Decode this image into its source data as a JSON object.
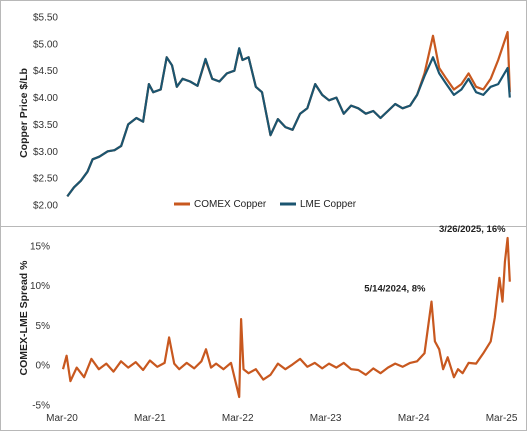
{
  "chart_data": [
    {
      "type": "line",
      "ylabel": "Copper Price $/Lb",
      "ylim": [
        2.0,
        5.5
      ],
      "yticks": [
        "$2.00",
        "$2.50",
        "$3.00",
        "$3.50",
        "$4.00",
        "$4.50",
        "$5.00",
        "$5.50"
      ],
      "legend": {
        "placement": "bottom-center"
      },
      "series": [
        {
          "name": "COMEX Copper",
          "color": "#C8581F",
          "points": [
            [
              "2020-03-23",
              2.16
            ],
            [
              "2020-04-20",
              2.33
            ],
            [
              "2020-05-18",
              2.45
            ],
            [
              "2020-06-15",
              2.62
            ],
            [
              "2020-07-06",
              2.85
            ],
            [
              "2020-08-03",
              2.9
            ],
            [
              "2020-09-07",
              3.0
            ],
            [
              "2020-10-05",
              3.02
            ],
            [
              "2020-11-02",
              3.1
            ],
            [
              "2020-12-01",
              3.5
            ],
            [
              "2021-01-04",
              3.62
            ],
            [
              "2021-02-01",
              3.55
            ],
            [
              "2021-02-25",
              4.25
            ],
            [
              "2021-03-15",
              4.1
            ],
            [
              "2021-04-15",
              4.15
            ],
            [
              "2021-05-10",
              4.75
            ],
            [
              "2021-06-01",
              4.6
            ],
            [
              "2021-06-21",
              4.2
            ],
            [
              "2021-07-15",
              4.35
            ],
            [
              "2021-08-15",
              4.3
            ],
            [
              "2021-09-15",
              4.22
            ],
            [
              "2021-10-18",
              4.7
            ],
            [
              "2021-11-15",
              4.35
            ],
            [
              "2021-12-15",
              4.3
            ],
            [
              "2022-01-15",
              4.45
            ],
            [
              "2022-02-15",
              4.5
            ],
            [
              "2022-03-07",
              4.9
            ],
            [
              "2022-03-21",
              4.7
            ],
            [
              "2022-04-15",
              4.75
            ],
            [
              "2022-05-15",
              4.2
            ],
            [
              "2022-06-10",
              4.1
            ],
            [
              "2022-07-15",
              3.3
            ],
            [
              "2022-08-15",
              3.6
            ],
            [
              "2022-09-15",
              3.45
            ],
            [
              "2022-10-15",
              3.4
            ],
            [
              "2022-11-15",
              3.7
            ],
            [
              "2022-12-15",
              3.8
            ],
            [
              "2023-01-17",
              4.25
            ],
            [
              "2023-02-15",
              4.05
            ],
            [
              "2023-03-15",
              3.95
            ],
            [
              "2023-04-15",
              4.0
            ],
            [
              "2023-05-15",
              3.7
            ],
            [
              "2023-06-15",
              3.85
            ],
            [
              "2023-07-15",
              3.8
            ],
            [
              "2023-08-15",
              3.7
            ],
            [
              "2023-09-15",
              3.75
            ],
            [
              "2023-10-15",
              3.62
            ],
            [
              "2023-11-15",
              3.75
            ],
            [
              "2023-12-15",
              3.88
            ],
            [
              "2024-01-15",
              3.8
            ],
            [
              "2024-02-15",
              3.85
            ],
            [
              "2024-03-15",
              4.05
            ],
            [
              "2024-04-15",
              4.45
            ],
            [
              "2024-05-20",
              5.15
            ],
            [
              "2024-06-15",
              4.55
            ],
            [
              "2024-07-15",
              4.35
            ],
            [
              "2024-08-15",
              4.15
            ],
            [
              "2024-09-15",
              4.25
            ],
            [
              "2024-10-15",
              4.45
            ],
            [
              "2024-11-15",
              4.2
            ],
            [
              "2024-12-15",
              4.15
            ],
            [
              "2025-01-15",
              4.35
            ],
            [
              "2025-02-15",
              4.7
            ],
            [
              "2025-03-26",
              5.22
            ],
            [
              "2025-04-04",
              4.1
            ]
          ]
        },
        {
          "name": "LME Copper",
          "color": "#1B5570",
          "points": [
            [
              "2020-03-23",
              2.16
            ],
            [
              "2020-04-20",
              2.33
            ],
            [
              "2020-05-18",
              2.45
            ],
            [
              "2020-06-15",
              2.62
            ],
            [
              "2020-07-06",
              2.85
            ],
            [
              "2020-08-03",
              2.9
            ],
            [
              "2020-09-07",
              3.0
            ],
            [
              "2020-10-05",
              3.02
            ],
            [
              "2020-11-02",
              3.1
            ],
            [
              "2020-12-01",
              3.5
            ],
            [
              "2021-01-04",
              3.62
            ],
            [
              "2021-02-01",
              3.55
            ],
            [
              "2021-02-25",
              4.25
            ],
            [
              "2021-03-15",
              4.1
            ],
            [
              "2021-04-15",
              4.15
            ],
            [
              "2021-05-10",
              4.75
            ],
            [
              "2021-06-01",
              4.6
            ],
            [
              "2021-06-21",
              4.2
            ],
            [
              "2021-07-15",
              4.35
            ],
            [
              "2021-08-15",
              4.3
            ],
            [
              "2021-09-15",
              4.22
            ],
            [
              "2021-10-18",
              4.72
            ],
            [
              "2021-11-15",
              4.35
            ],
            [
              "2021-12-15",
              4.3
            ],
            [
              "2022-01-15",
              4.45
            ],
            [
              "2022-02-15",
              4.5
            ],
            [
              "2022-03-07",
              4.92
            ],
            [
              "2022-03-21",
              4.7
            ],
            [
              "2022-04-15",
              4.75
            ],
            [
              "2022-05-15",
              4.2
            ],
            [
              "2022-06-10",
              4.1
            ],
            [
              "2022-07-15",
              3.3
            ],
            [
              "2022-08-15",
              3.6
            ],
            [
              "2022-09-15",
              3.45
            ],
            [
              "2022-10-15",
              3.4
            ],
            [
              "2022-11-15",
              3.7
            ],
            [
              "2022-12-15",
              3.8
            ],
            [
              "2023-01-17",
              4.25
            ],
            [
              "2023-02-15",
              4.05
            ],
            [
              "2023-03-15",
              3.95
            ],
            [
              "2023-04-15",
              4.0
            ],
            [
              "2023-05-15",
              3.7
            ],
            [
              "2023-06-15",
              3.85
            ],
            [
              "2023-07-15",
              3.8
            ],
            [
              "2023-08-15",
              3.7
            ],
            [
              "2023-09-15",
              3.75
            ],
            [
              "2023-10-15",
              3.62
            ],
            [
              "2023-11-15",
              3.75
            ],
            [
              "2023-12-15",
              3.88
            ],
            [
              "2024-01-15",
              3.8
            ],
            [
              "2024-02-15",
              3.85
            ],
            [
              "2024-03-15",
              4.05
            ],
            [
              "2024-04-15",
              4.4
            ],
            [
              "2024-05-20",
              4.75
            ],
            [
              "2024-06-15",
              4.45
            ],
            [
              "2024-07-15",
              4.25
            ],
            [
              "2024-08-15",
              4.05
            ],
            [
              "2024-09-15",
              4.15
            ],
            [
              "2024-10-15",
              4.35
            ],
            [
              "2024-11-15",
              4.1
            ],
            [
              "2024-12-15",
              4.05
            ],
            [
              "2025-01-15",
              4.2
            ],
            [
              "2025-02-15",
              4.25
            ],
            [
              "2025-03-26",
              4.55
            ],
            [
              "2025-04-04",
              4.0
            ]
          ]
        }
      ]
    },
    {
      "type": "line",
      "ylabel": "COMEX-LME Spread %",
      "ylim": [
        -5,
        16
      ],
      "yticks": [
        "-5%",
        "0%",
        "5%",
        "10%",
        "15%"
      ],
      "x_range": [
        "2020-03-01",
        "2025-04-05"
      ],
      "xtick_dates": [
        "2020-03-01",
        "2021-03-01",
        "2022-03-01",
        "2023-03-01",
        "2024-03-01",
        "2025-03-01"
      ],
      "xtick_labels": [
        "Mar-20",
        "Mar-21",
        "Mar-22",
        "Mar-23",
        "Mar-24",
        "Mar-25"
      ],
      "annotations": [
        {
          "date": "2024-05-14",
          "value": 8,
          "text": "5/14/2024, 8%"
        },
        {
          "date": "2025-03-26",
          "value": 16,
          "text": "3/26/2025, 16%"
        }
      ],
      "series": [
        {
          "name": "COMEX-LME Spread",
          "color": "#C8581F",
          "points": [
            [
              "2020-03-05",
              -0.5
            ],
            [
              "2020-03-20",
              1.2
            ],
            [
              "2020-04-05",
              -2.0
            ],
            [
              "2020-05-01",
              -0.3
            ],
            [
              "2020-06-01",
              -1.5
            ],
            [
              "2020-07-01",
              0.8
            ],
            [
              "2020-08-01",
              -0.5
            ],
            [
              "2020-09-01",
              0.2
            ],
            [
              "2020-10-01",
              -0.8
            ],
            [
              "2020-11-01",
              0.5
            ],
            [
              "2020-12-01",
              -0.3
            ],
            [
              "2021-01-01",
              0.4
            ],
            [
              "2021-02-01",
              -0.6
            ],
            [
              "2021-03-01",
              0.6
            ],
            [
              "2021-04-01",
              -0.2
            ],
            [
              "2021-05-01",
              0.3
            ],
            [
              "2021-05-20",
              3.5
            ],
            [
              "2021-06-10",
              0.2
            ],
            [
              "2021-07-01",
              -0.5
            ],
            [
              "2021-08-01",
              0.3
            ],
            [
              "2021-09-01",
              -0.4
            ],
            [
              "2021-10-01",
              0.5
            ],
            [
              "2021-10-20",
              2.0
            ],
            [
              "2021-11-10",
              -0.3
            ],
            [
              "2021-12-01",
              0.2
            ],
            [
              "2022-01-01",
              -0.5
            ],
            [
              "2022-02-01",
              0.3
            ],
            [
              "2022-03-07",
              -4.0
            ],
            [
              "2022-03-15",
              5.8
            ],
            [
              "2022-03-25",
              -0.5
            ],
            [
              "2022-04-15",
              -1.0
            ],
            [
              "2022-05-15",
              -0.5
            ],
            [
              "2022-06-15",
              -1.8
            ],
            [
              "2022-07-15",
              -1.2
            ],
            [
              "2022-08-15",
              0.2
            ],
            [
              "2022-09-15",
              -0.5
            ],
            [
              "2022-10-15",
              0.1
            ],
            [
              "2022-11-15",
              0.8
            ],
            [
              "2022-12-15",
              -0.2
            ],
            [
              "2023-01-15",
              0.3
            ],
            [
              "2023-02-15",
              -0.4
            ],
            [
              "2023-03-15",
              0.2
            ],
            [
              "2023-04-15",
              -0.3
            ],
            [
              "2023-05-15",
              0.3
            ],
            [
              "2023-06-15",
              -0.5
            ],
            [
              "2023-07-15",
              -0.6
            ],
            [
              "2023-08-15",
              -1.2
            ],
            [
              "2023-09-15",
              -0.4
            ],
            [
              "2023-10-15",
              -1.0
            ],
            [
              "2023-11-15",
              -0.3
            ],
            [
              "2023-12-15",
              0.2
            ],
            [
              "2024-01-15",
              -0.2
            ],
            [
              "2024-02-15",
              0.3
            ],
            [
              "2024-03-15",
              0.5
            ],
            [
              "2024-04-15",
              1.5
            ],
            [
              "2024-05-14",
              8.0
            ],
            [
              "2024-05-28",
              3.0
            ],
            [
              "2024-06-15",
              2.0
            ],
            [
              "2024-07-01",
              -0.5
            ],
            [
              "2024-07-20",
              1.0
            ],
            [
              "2024-08-15",
              -1.5
            ],
            [
              "2024-09-01",
              -0.5
            ],
            [
              "2024-09-20",
              -1.0
            ],
            [
              "2024-10-15",
              0.3
            ],
            [
              "2024-11-15",
              0.2
            ],
            [
              "2024-12-15",
              1.5
            ],
            [
              "2025-01-15",
              3.0
            ],
            [
              "2025-02-01",
              6.0
            ],
            [
              "2025-02-20",
              11.0
            ],
            [
              "2025-03-05",
              8.0
            ],
            [
              "2025-03-15",
              13.0
            ],
            [
              "2025-03-26",
              16.0
            ],
            [
              "2025-04-04",
              10.5
            ]
          ]
        }
      ]
    }
  ]
}
